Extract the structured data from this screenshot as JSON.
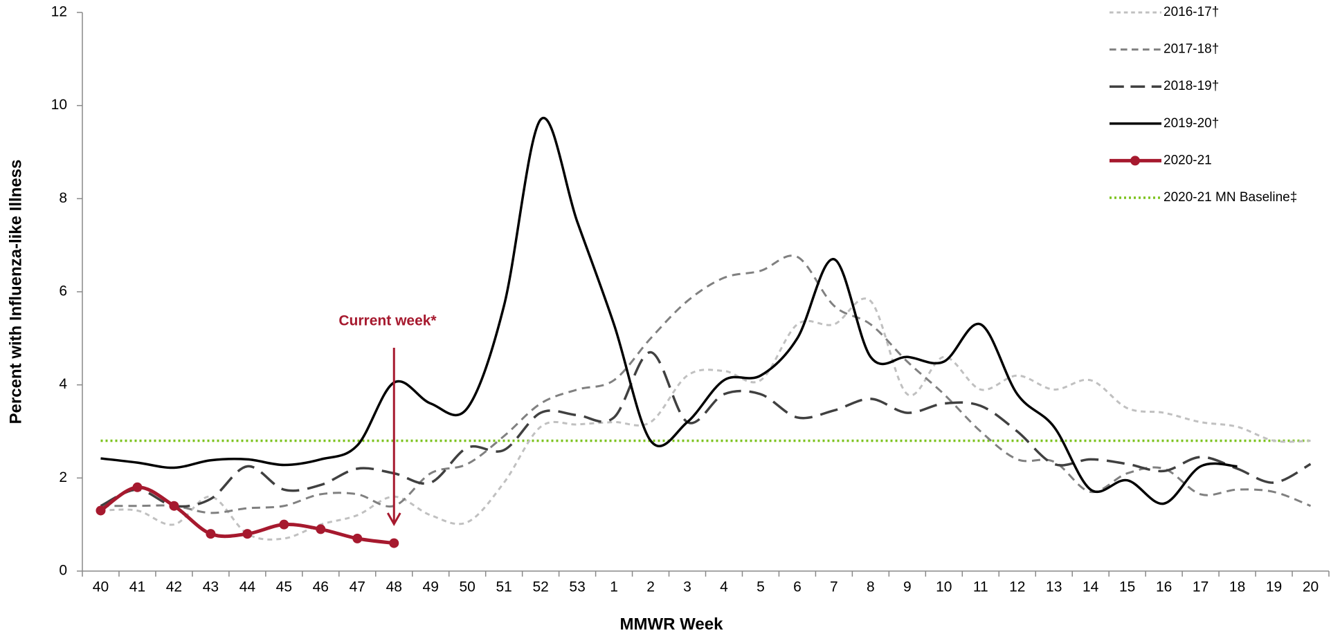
{
  "chart_data": {
    "type": "line",
    "xlabel": "MMWR Week",
    "ylabel": "Percent with Influenza-like Illness",
    "categories": [
      "40",
      "41",
      "42",
      "43",
      "44",
      "45",
      "46",
      "47",
      "48",
      "49",
      "50",
      "51",
      "52",
      "53",
      "1",
      "2",
      "3",
      "4",
      "5",
      "6",
      "7",
      "8",
      "9",
      "10",
      "11",
      "12",
      "13",
      "14",
      "15",
      "16",
      "17",
      "18",
      "19",
      "20"
    ],
    "ylim": [
      0,
      12
    ],
    "yticks": [
      0,
      2,
      4,
      6,
      8,
      10,
      12
    ],
    "series": [
      {
        "name": "2016-17†",
        "color": "#c0c0c0",
        "dash": "7,6",
        "width": 3,
        "values": [
          1.3,
          1.3,
          1.0,
          1.6,
          0.8,
          0.7,
          1.0,
          1.2,
          1.6,
          1.2,
          1.05,
          1.9,
          3.1,
          3.15,
          3.2,
          3.2,
          4.2,
          4.3,
          4.1,
          5.3,
          5.3,
          5.8,
          3.8,
          4.6,
          3.9,
          4.2,
          3.9,
          4.1,
          3.5,
          3.4,
          3.2,
          3.1,
          2.8,
          2.8
        ]
      },
      {
        "name": "2017-18†",
        "color": "#808080",
        "dash": "12,8",
        "width": 3,
        "values": [
          1.4,
          1.4,
          1.4,
          1.25,
          1.35,
          1.4,
          1.65,
          1.65,
          1.4,
          2.1,
          2.3,
          2.9,
          3.6,
          3.9,
          4.1,
          5.0,
          5.8,
          6.3,
          6.45,
          6.75,
          5.7,
          5.3,
          4.5,
          3.8,
          3.0,
          2.4,
          2.35,
          1.7,
          2.1,
          2.2,
          1.65,
          1.75,
          1.7,
          1.4
        ]
      },
      {
        "name": "2018-19†",
        "color": "#404040",
        "dash": "26,12",
        "width": 3.5,
        "values": [
          1.4,
          1.75,
          1.4,
          1.55,
          2.25,
          1.75,
          1.85,
          2.2,
          2.1,
          1.9,
          2.65,
          2.6,
          3.4,
          3.35,
          3.3,
          4.7,
          3.2,
          3.8,
          3.8,
          3.3,
          3.45,
          3.7,
          3.4,
          3.6,
          3.55,
          3.0,
          2.3,
          2.4,
          2.3,
          2.15,
          2.45,
          2.2,
          1.9,
          2.3
        ]
      },
      {
        "name": "2019-20†",
        "color": "#000000",
        "dash": "none",
        "width": 3.5,
        "values": [
          2.42,
          2.33,
          2.22,
          2.38,
          2.4,
          2.28,
          2.4,
          2.7,
          4.05,
          3.6,
          3.5,
          5.7,
          9.7,
          7.5,
          5.3,
          2.8,
          3.2,
          4.1,
          4.2,
          5.0,
          6.7,
          4.6,
          4.6,
          4.5,
          5.3,
          3.8,
          3.1,
          1.75,
          1.95,
          1.45,
          2.25,
          2.25,
          null,
          null
        ]
      },
      {
        "name": "2020-21",
        "color": "#a6192e",
        "dash": "none",
        "width": 5,
        "markers": true,
        "values": [
          1.3,
          1.8,
          1.4,
          0.8,
          0.8,
          1.0,
          0.9,
          0.7,
          0.6,
          null,
          null,
          null,
          null,
          null,
          null,
          null,
          null,
          null,
          null,
          null,
          null,
          null,
          null,
          null,
          null,
          null,
          null,
          null,
          null,
          null,
          null,
          null,
          null,
          null
        ]
      }
    ],
    "baseline": {
      "name": "2020-21 MN Baseline‡",
      "color": "#7dc31f",
      "value": 2.8
    },
    "annotation": "Current week*",
    "legend": "top-right"
  }
}
